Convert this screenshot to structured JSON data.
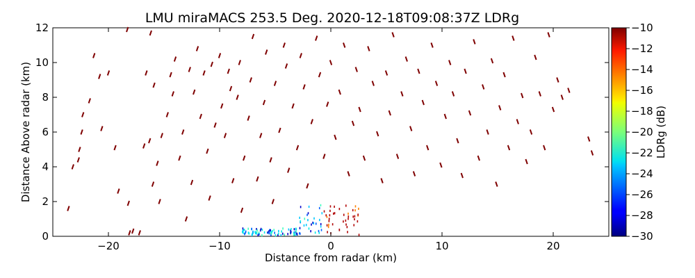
{
  "chart_data": {
    "type": "scatter",
    "title": "LMU miraMACS 253.5 Deg. 2020-12-18T09:08:37Z  LDRg",
    "xlabel": "Distance from radar (km)",
    "ylabel": "Distance Above radar  (km)",
    "xlim": [
      -25,
      25
    ],
    "ylim": [
      0,
      12
    ],
    "xticks": [
      -20,
      -10,
      0,
      10,
      20
    ],
    "xtick_labels": [
      "−20",
      "−10",
      "0",
      "10",
      "20"
    ],
    "yticks": [
      0,
      2,
      4,
      6,
      8,
      10,
      12
    ],
    "ytick_labels": [
      "0",
      "2",
      "4",
      "6",
      "8",
      "10",
      "12"
    ],
    "grid": false,
    "colorbar": {
      "label": "LDRg (dB)",
      "range": [
        -30,
        -10
      ],
      "colormap": "jet",
      "ticks": [
        -10,
        -12,
        -14,
        -16,
        -18,
        -20,
        -22,
        -24,
        -26,
        -28,
        -30
      ],
      "tick_labels": [
        "−10",
        "−12",
        "−14",
        "−16",
        "−18",
        "−20",
        "−22",
        "−24",
        "−26",
        "−28",
        "−30"
      ]
    },
    "series": [
      {
        "values_dB": -10,
        "points": [
          [
            -23.6,
            1.6
          ],
          [
            -23.2,
            4.0
          ],
          [
            -22.7,
            4.4
          ],
          [
            -22.6,
            5.0
          ],
          [
            -22.4,
            6.0
          ],
          [
            -22.3,
            7.0
          ],
          [
            -21.7,
            7.8
          ],
          [
            -21.3,
            10.4
          ],
          [
            -20.8,
            9.2
          ],
          [
            -20.6,
            6.2
          ],
          [
            -20.0,
            9.4
          ],
          [
            -19.4,
            5.1
          ],
          [
            -19.1,
            2.6
          ],
          [
            -18.3,
            11.9
          ],
          [
            -18.2,
            1.9
          ],
          [
            -18.1,
            0.2
          ],
          [
            -17.8,
            0.3
          ],
          [
            -17.2,
            0.2
          ],
          [
            -16.8,
            5.2
          ],
          [
            -16.6,
            9.4
          ],
          [
            -16.3,
            5.5
          ],
          [
            -16.2,
            11.7
          ],
          [
            -16.0,
            3.0
          ],
          [
            -15.9,
            8.7
          ],
          [
            -15.6,
            4.2
          ],
          [
            -15.4,
            2.0
          ],
          [
            -15.2,
            5.8
          ],
          [
            -14.7,
            7.0
          ],
          [
            -14.4,
            9.3
          ],
          [
            -14.2,
            8.2
          ],
          [
            -14.0,
            10.2
          ],
          [
            -13.6,
            4.5
          ],
          [
            -13.3,
            6.0
          ],
          [
            -13.0,
            1.0
          ],
          [
            -12.7,
            9.6
          ],
          [
            -12.5,
            3.1
          ],
          [
            -12.3,
            8.3
          ],
          [
            -12.0,
            10.8
          ],
          [
            -11.7,
            6.9
          ],
          [
            -11.4,
            9.4
          ],
          [
            -11.1,
            4.9
          ],
          [
            -10.9,
            2.2
          ],
          [
            -10.7,
            9.9
          ],
          [
            -10.4,
            6.4
          ],
          [
            -10.0,
            10.4
          ],
          [
            -9.8,
            7.5
          ],
          [
            -9.5,
            5.8
          ],
          [
            -9.2,
            9.5
          ],
          [
            -9.0,
            8.5
          ],
          [
            -8.8,
            3.2
          ],
          [
            -8.4,
            8.0
          ],
          [
            -8.2,
            10.0
          ],
          [
            -8.0,
            1.5
          ],
          [
            -7.8,
            4.5
          ],
          [
            -7.4,
            6.8
          ],
          [
            -7.2,
            9.0
          ],
          [
            -7.0,
            11.5
          ],
          [
            -6.6,
            3.3
          ],
          [
            -6.3,
            5.8
          ],
          [
            -6.0,
            7.7
          ],
          [
            -5.8,
            10.6
          ],
          [
            -5.4,
            4.4
          ],
          [
            -5.2,
            2.0
          ],
          [
            -5.0,
            8.8
          ],
          [
            -4.6,
            6.1
          ],
          [
            -4.2,
            11.0
          ],
          [
            -4.0,
            9.8
          ],
          [
            -3.8,
            3.8
          ],
          [
            -3.4,
            7.5
          ],
          [
            -3.0,
            5.1
          ],
          [
            -2.7,
            10.4
          ],
          [
            -2.4,
            8.6
          ],
          [
            -2.1,
            2.9
          ],
          [
            -1.7,
            6.6
          ],
          [
            -1.3,
            11.4
          ],
          [
            -1.0,
            9.3
          ],
          [
            -0.6,
            4.6
          ],
          [
            -0.3,
            7.6
          ],
          [
            0.0,
            10.0
          ],
          [
            0.4,
            5.7
          ],
          [
            0.8,
            8.3
          ],
          [
            1.2,
            11.0
          ],
          [
            1.6,
            3.6
          ],
          [
            2.0,
            6.5
          ],
          [
            2.3,
            9.6
          ],
          [
            2.6,
            7.3
          ],
          [
            3.0,
            4.5
          ],
          [
            3.4,
            10.8
          ],
          [
            3.8,
            8.8
          ],
          [
            4.2,
            5.9
          ],
          [
            4.6,
            3.2
          ],
          [
            5.0,
            9.4
          ],
          [
            5.3,
            7.1
          ],
          [
            5.6,
            11.6
          ],
          [
            6.0,
            4.6
          ],
          [
            6.4,
            8.2
          ],
          [
            6.8,
            10.2
          ],
          [
            7.2,
            6.2
          ],
          [
            7.5,
            3.6
          ],
          [
            7.9,
            9.5
          ],
          [
            8.3,
            7.7
          ],
          [
            8.7,
            5.1
          ],
          [
            9.1,
            11.0
          ],
          [
            9.5,
            8.8
          ],
          [
            9.9,
            4.1
          ],
          [
            10.3,
            6.9
          ],
          [
            10.7,
            10.0
          ],
          [
            11.0,
            8.2
          ],
          [
            11.4,
            5.5
          ],
          [
            11.8,
            3.5
          ],
          [
            12.1,
            9.5
          ],
          [
            12.5,
            7.1
          ],
          [
            12.9,
            11.2
          ],
          [
            13.3,
            4.5
          ],
          [
            13.7,
            8.6
          ],
          [
            14.1,
            6.0
          ],
          [
            14.5,
            10.1
          ],
          [
            14.9,
            3.0
          ],
          [
            15.2,
            7.4
          ],
          [
            15.6,
            9.3
          ],
          [
            16.0,
            5.1
          ],
          [
            16.4,
            11.4
          ],
          [
            16.8,
            6.6
          ],
          [
            17.2,
            8.1
          ],
          [
            17.6,
            4.3
          ],
          [
            18.0,
            6.0
          ],
          [
            18.4,
            10.3
          ],
          [
            18.8,
            8.2
          ],
          [
            19.2,
            5.1
          ],
          [
            19.6,
            11.6
          ],
          [
            20.0,
            7.3
          ],
          [
            20.4,
            9.0
          ],
          [
            20.8,
            8.0
          ],
          [
            21.4,
            8.4
          ],
          [
            23.2,
            5.6
          ],
          [
            23.5,
            4.8
          ]
        ]
      }
    ]
  }
}
